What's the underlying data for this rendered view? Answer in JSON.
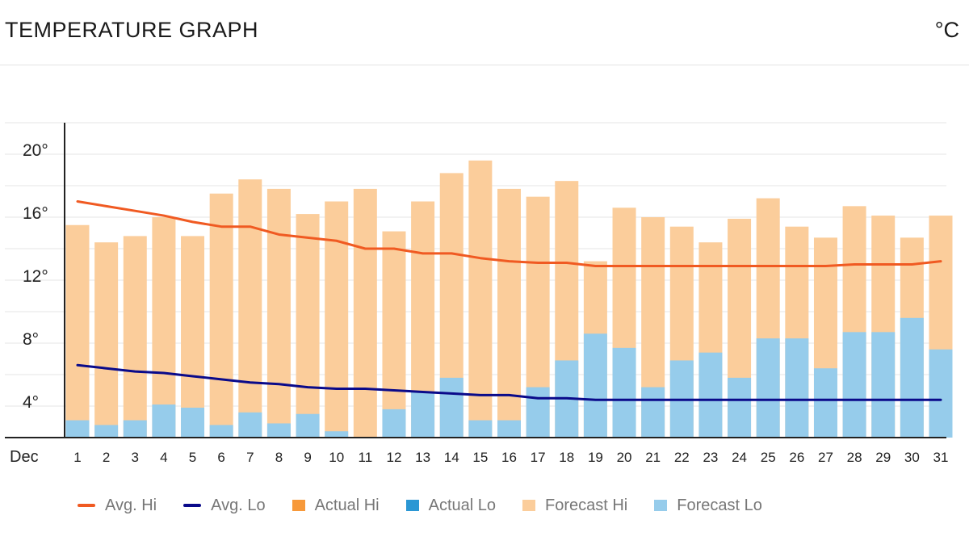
{
  "header": {
    "title": "TEMPERATURE GRAPH",
    "unit": "°C"
  },
  "chart_data": {
    "type": "bar",
    "month_label": "Dec",
    "x": [
      "1",
      "2",
      "3",
      "4",
      "5",
      "6",
      "7",
      "8",
      "9",
      "10",
      "11",
      "12",
      "13",
      "14",
      "15",
      "16",
      "17",
      "18",
      "19",
      "20",
      "21",
      "22",
      "23",
      "24",
      "25",
      "26",
      "27",
      "28",
      "29",
      "30",
      "31"
    ],
    "y_ticks": [
      "4°",
      "8°",
      "12°",
      "16°",
      "20°"
    ],
    "ylim": [
      2,
      22
    ],
    "grid": true,
    "legend_position": "bottom",
    "series": [
      {
        "name": "Forecast Hi",
        "kind": "bar",
        "color": "#fbcd9b",
        "values": [
          15.5,
          14.4,
          14.8,
          16.0,
          14.8,
          17.5,
          18.4,
          17.8,
          16.2,
          17.0,
          17.8,
          15.1,
          17.0,
          18.8,
          19.6,
          17.8,
          17.3,
          18.3,
          13.2,
          16.6,
          16.0,
          15.4,
          14.4,
          15.9,
          17.2,
          15.4,
          14.7,
          16.7,
          16.1,
          14.7,
          16.1
        ]
      },
      {
        "name": "Forecast Lo",
        "kind": "bar",
        "color": "#96cceb",
        "values": [
          3.1,
          2.8,
          3.1,
          4.1,
          3.9,
          2.8,
          3.6,
          2.9,
          3.5,
          2.4,
          2.0,
          3.8,
          4.9,
          5.8,
          3.1,
          3.1,
          5.2,
          6.9,
          8.6,
          7.7,
          5.2,
          6.9,
          7.4,
          5.8,
          8.3,
          8.3,
          6.4,
          8.7,
          8.7,
          9.6,
          7.6
        ]
      },
      {
        "name": "Avg. Hi",
        "kind": "line",
        "color": "#f05a22",
        "values": [
          17.0,
          16.7,
          16.4,
          16.1,
          15.7,
          15.4,
          15.4,
          14.9,
          14.7,
          14.5,
          14.0,
          14.0,
          13.7,
          13.7,
          13.4,
          13.2,
          13.1,
          13.1,
          12.9,
          12.9,
          12.9,
          12.9,
          12.9,
          12.9,
          12.9,
          12.9,
          12.9,
          13.0,
          13.0,
          13.0,
          13.2
        ]
      },
      {
        "name": "Avg. Lo",
        "kind": "line",
        "color": "#0a0a8a",
        "values": [
          6.6,
          6.4,
          6.2,
          6.1,
          5.9,
          5.7,
          5.5,
          5.4,
          5.2,
          5.1,
          5.1,
          5.0,
          4.9,
          4.8,
          4.7,
          4.7,
          4.5,
          4.5,
          4.4,
          4.4,
          4.4,
          4.4,
          4.4,
          4.4,
          4.4,
          4.4,
          4.4,
          4.4,
          4.4,
          4.4,
          4.4
        ]
      }
    ]
  },
  "legend": [
    {
      "label": "Avg. Hi",
      "color": "#f05a22",
      "shape": "line"
    },
    {
      "label": "Avg. Lo",
      "color": "#0a0a8a",
      "shape": "line"
    },
    {
      "label": "Actual Hi",
      "color": "#f7993a",
      "shape": "box"
    },
    {
      "label": "Actual Lo",
      "color": "#2b97d4",
      "shape": "box"
    },
    {
      "label": "Forecast Hi",
      "color": "#fbcd9b",
      "shape": "box"
    },
    {
      "label": "Forecast Lo",
      "color": "#96cceb",
      "shape": "box"
    }
  ]
}
